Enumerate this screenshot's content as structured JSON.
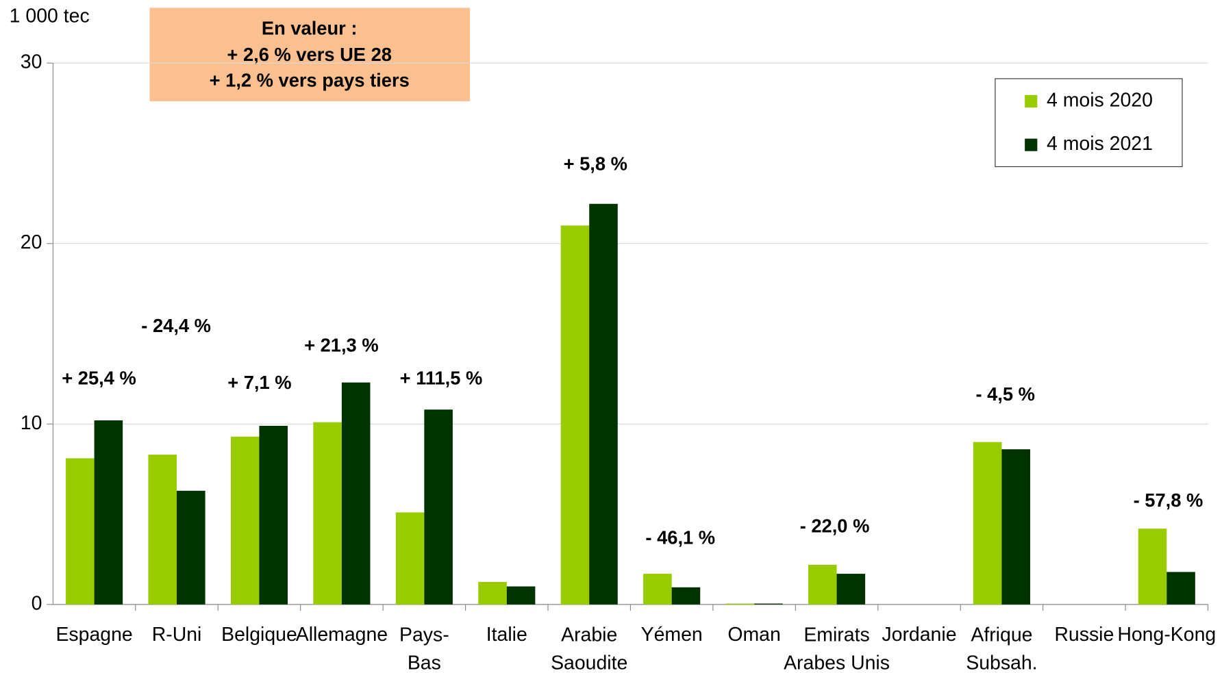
{
  "chart_data": {
    "type": "bar",
    "y_unit": "1 000 tec",
    "annotation_box": [
      "En valeur :",
      "+ 2,6 % vers UE 28",
      "+ 1,2 % vers pays tiers"
    ],
    "categories": [
      "Espagne",
      "R-Uni",
      "Belgique",
      "Allemagne",
      "Pays-\nBas",
      "Italie",
      "Arabie\nSaoudite",
      "Yémen",
      "Oman",
      "Emirats\nArabes Unis",
      "Jordanie",
      "Afrique\nSubsah.",
      "Russie",
      "Hong-Kong"
    ],
    "series": [
      {
        "name": "4 mois 2020",
        "color": "#99cc00",
        "values": [
          8.1,
          8.3,
          9.3,
          10.1,
          5.1,
          1.25,
          21.0,
          1.7,
          0.05,
          2.2,
          0,
          9.0,
          0,
          4.2
        ]
      },
      {
        "name": "4 mois 2021",
        "color": "#003300",
        "values": [
          10.2,
          6.3,
          9.9,
          12.3,
          10.8,
          1.0,
          22.2,
          0.95,
          0.05,
          1.7,
          0,
          8.6,
          0,
          1.8
        ]
      }
    ],
    "change_labels": [
      "+ 25,4 %",
      "- 24,4 %",
      "+ 7,1 %",
      "+ 21,3 %",
      "+ 111,5 %",
      null,
      "+ 5,8 %",
      "- 46,1 %",
      null,
      "- 22,0 %",
      null,
      "- 4,5 %",
      null,
      "- 57,8 %"
    ],
    "ylim": [
      0,
      30
    ],
    "yticks": [
      0,
      10,
      20,
      30
    ],
    "grid": true,
    "legend": "upper right"
  }
}
